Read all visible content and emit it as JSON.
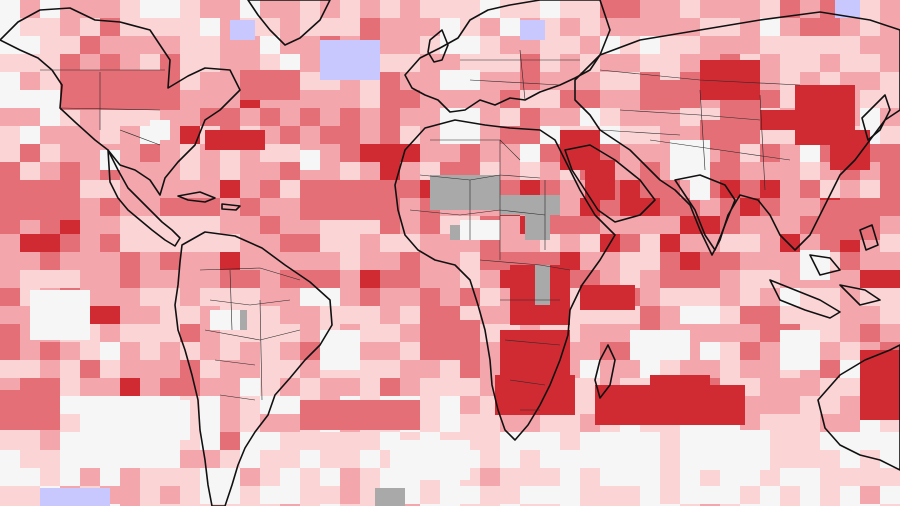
{
  "map": {
    "projection": "equirectangular-crop",
    "legend_colors": {
      "ocean_neutral": "#f6f6f6",
      "warm_1": "#fbd4d6",
      "warm_2": "#f3a6ab",
      "warm_3": "#e46f77",
      "warm_4": "#d02b33",
      "cool_1": "#c8c8ff",
      "missing": "#a9a9a9"
    }
  }
}
